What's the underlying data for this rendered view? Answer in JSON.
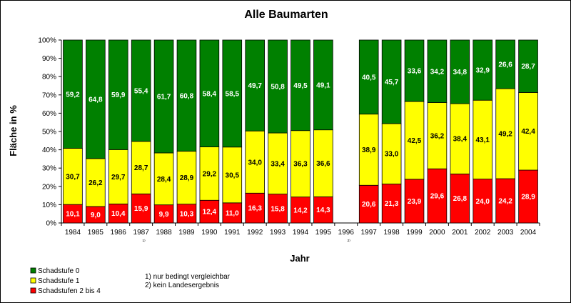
{
  "chart_data": {
    "type": "bar",
    "stacked": true,
    "title": "Alle Baumarten",
    "xlabel": "Jahr",
    "ylabel": "Fläche in %",
    "ylim": [
      0,
      100
    ],
    "y_ticks": [
      "0%",
      "10%",
      "20%",
      "30%",
      "40%",
      "50%",
      "60%",
      "70%",
      "80%",
      "90%",
      "100%"
    ],
    "grid": false,
    "categories": [
      "1984",
      "1985",
      "1986",
      "1987",
      "1988",
      "1989",
      "1990",
      "1991",
      "1992",
      "1993",
      "1994",
      "1995",
      "1996",
      "1997",
      "1998",
      "1999",
      "2000",
      "2001",
      "2002",
      "2003",
      "2004"
    ],
    "category_footnotes": {
      "1987": "¹⁾",
      "1996": "²⁾"
    },
    "series": [
      {
        "name": "Schadstufen 2 bis 4",
        "color": "#ff0000",
        "label_color": "#ffffff",
        "values": [
          10.1,
          9.0,
          10.4,
          15.9,
          9.9,
          10.3,
          12.4,
          11.0,
          16.3,
          15.8,
          14.2,
          14.3,
          null,
          20.6,
          21.3,
          23.9,
          29.6,
          26.8,
          24.0,
          24.2,
          28.9
        ],
        "labels": [
          "10,1",
          "9,0",
          "10,4",
          "15,9",
          "9,9",
          "10,3",
          "12,4",
          "11,0",
          "16,3",
          "15,8",
          "14,2",
          "14,3",
          "",
          "20,6",
          "21,3",
          "23,9",
          "29,6",
          "26,8",
          "24,0",
          "24,2",
          "28,9"
        ]
      },
      {
        "name": "Schadstufe 1",
        "color": "#ffff00",
        "label_color": "#000000",
        "values": [
          30.7,
          26.2,
          29.7,
          28.7,
          28.4,
          28.9,
          29.2,
          30.5,
          34.0,
          33.4,
          36.3,
          36.6,
          null,
          38.9,
          33.0,
          42.5,
          36.2,
          38.4,
          43.1,
          49.2,
          42.4
        ],
        "labels": [
          "30,7",
          "26,2",
          "29,7",
          "28,7",
          "28,4",
          "28,9",
          "29,2",
          "30,5",
          "34,0",
          "33,4",
          "36,3",
          "36,6",
          "",
          "38,9",
          "33,0",
          "42,5",
          "36,2",
          "38,4",
          "43,1",
          "49,2",
          "42,4"
        ]
      },
      {
        "name": "Schadstufe 0",
        "color": "#008000",
        "label_color": "#ffffff",
        "values": [
          59.2,
          64.8,
          59.9,
          55.4,
          61.7,
          60.8,
          58.4,
          58.5,
          49.7,
          50.8,
          49.5,
          49.1,
          null,
          40.5,
          45.7,
          33.6,
          34.2,
          34.8,
          32.9,
          26.6,
          28.7
        ],
        "labels": [
          "59,2",
          "64,8",
          "59,9",
          "55,4",
          "61,7",
          "60,8",
          "58,4",
          "58,5",
          "49,7",
          "50,8",
          "49,5",
          "49,1",
          "",
          "40,5",
          "45,7",
          "33,6",
          "34,2",
          "34,8",
          "32,9",
          "26,6",
          "28,7"
        ]
      }
    ],
    "legend": {
      "placement": "bottom-left",
      "items": [
        "Schadstufe 0",
        "Schadstufe 1",
        "Schadstufen 2 bis 4"
      ]
    },
    "notes": [
      "1) nur bedingt vergleichbar",
      "2) kein Landesergebnis"
    ]
  }
}
